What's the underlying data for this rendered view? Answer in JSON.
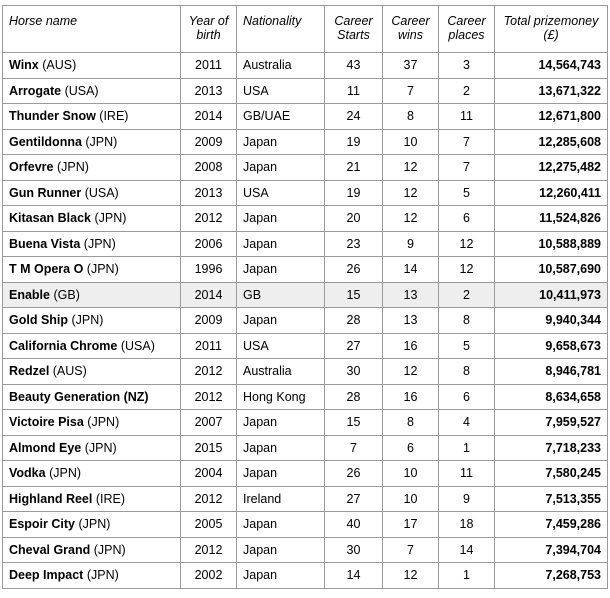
{
  "headers": {
    "name": "Horse name",
    "year_l1": "Year of",
    "year_l2": "birth",
    "nationality": "Nationality",
    "starts_l1": "Career",
    "starts_l2": "Starts",
    "wins_l1": "Career",
    "wins_l2": "wins",
    "places_l1": "Career",
    "places_l2": "places",
    "prize_l1": "Total prizemoney",
    "prize_l2": "(£)"
  },
  "rows": [
    {
      "name": "Winx",
      "country": " (AUS)",
      "year": "2011",
      "nat": "Australia",
      "starts": "43",
      "wins": "37",
      "places": "3",
      "prize": "14,564,743"
    },
    {
      "name": "Arrogate",
      "country": " (USA)",
      "year": "2013",
      "nat": "USA",
      "starts": "11",
      "wins": "7",
      "places": "2",
      "prize": "13,671,322"
    },
    {
      "name": "Thunder Snow",
      "country": " (IRE)",
      "year": "2014",
      "nat": "GB/UAE",
      "starts": "24",
      "wins": "8",
      "places": "11",
      "prize": "12,671,800"
    },
    {
      "name": "Gentildonna",
      "country": " (JPN)",
      "year": "2009",
      "nat": "Japan",
      "starts": "19",
      "wins": "10",
      "places": "7",
      "prize": "12,285,608"
    },
    {
      "name": "Orfevre",
      "country": " (JPN)",
      "year": "2008",
      "nat": "Japan",
      "starts": "21",
      "wins": "12",
      "places": "7",
      "prize": "12,275,482"
    },
    {
      "name": "Gun Runner",
      "country": " (USA)",
      "year": "2013",
      "nat": "USA",
      "starts": "19",
      "wins": "12",
      "places": "5",
      "prize": "12,260,411"
    },
    {
      "name": "Kitasan Black",
      "country": " (JPN)",
      "year": "2012",
      "nat": "Japan",
      "starts": "20",
      "wins": "12",
      "places": "6",
      "prize": "11,524,826"
    },
    {
      "name": "Buena Vista",
      "country": " (JPN)",
      "year": "2006",
      "nat": "Japan",
      "starts": "23",
      "wins": "9",
      "places": "12",
      "prize": "10,588,889"
    },
    {
      "name": "T M Opera O",
      "country": " (JPN)",
      "year": "1996",
      "nat": "Japan",
      "starts": "26",
      "wins": "14",
      "places": "12",
      "prize": "10,587,690"
    },
    {
      "name": "Enable",
      "country": " (GB)",
      "year": "2014",
      "nat": "GB",
      "starts": "15",
      "wins": "13",
      "places": "2",
      "prize": "10,411,973"
    },
    {
      "name": "Gold Ship",
      "country": " (JPN)",
      "year": "2009",
      "nat": "Japan",
      "starts": "28",
      "wins": "13",
      "places": "8",
      "prize": "9,940,344"
    },
    {
      "name": "California Chrome",
      "country": " (USA)",
      "year": "2011",
      "nat": "USA",
      "starts": "27",
      "wins": "16",
      "places": "5",
      "prize": "9,658,673"
    },
    {
      "name": "Redzel",
      "country": " (AUS)",
      "year": "2012",
      "nat": "Australia",
      "starts": "30",
      "wins": "12",
      "places": "8",
      "prize": "8,946,781"
    },
    {
      "name": "Beauty Generation (NZ)",
      "country": "",
      "year": "2012",
      "nat": "Hong Kong",
      "starts": "28",
      "wins": "16",
      "places": "6",
      "prize": "8,634,658"
    },
    {
      "name": "Victoire Pisa",
      "country": " (JPN)",
      "year": "2007",
      "nat": "Japan",
      "starts": "15",
      "wins": "8",
      "places": "4",
      "prize": "7,959,527"
    },
    {
      "name": "Almond Eye",
      "country": " (JPN)",
      "year": "2015",
      "nat": "Japan",
      "starts": "7",
      "wins": "6",
      "places": "1",
      "prize": "7,718,233"
    },
    {
      "name": "Vodka",
      "country": " (JPN)",
      "year": "2004",
      "nat": "Japan",
      "starts": "26",
      "wins": "10",
      "places": "11",
      "prize": "7,580,245"
    },
    {
      "name": "Highland Reel",
      "country": " (IRE)",
      "year": "2012",
      "nat": "Ireland",
      "starts": "27",
      "wins": "10",
      "places": "9",
      "prize": "7,513,355"
    },
    {
      "name": "Espoir City",
      "country": " (JPN)",
      "year": "2005",
      "nat": "Japan",
      "starts": "40",
      "wins": "17",
      "places": "18",
      "prize": "7,459,286"
    },
    {
      "name": "Cheval Grand",
      "country": " (JPN)",
      "year": "2012",
      "nat": "Japan",
      "starts": "30",
      "wins": "7",
      "places": "14",
      "prize": "7,394,704"
    },
    {
      "name": "Deep Impact",
      "country": " (JPN)",
      "year": "2002",
      "nat": "Japan",
      "starts": "14",
      "wins": "12",
      "places": "1",
      "prize": "7,268,753"
    }
  ],
  "highlight_row_index": 9
}
